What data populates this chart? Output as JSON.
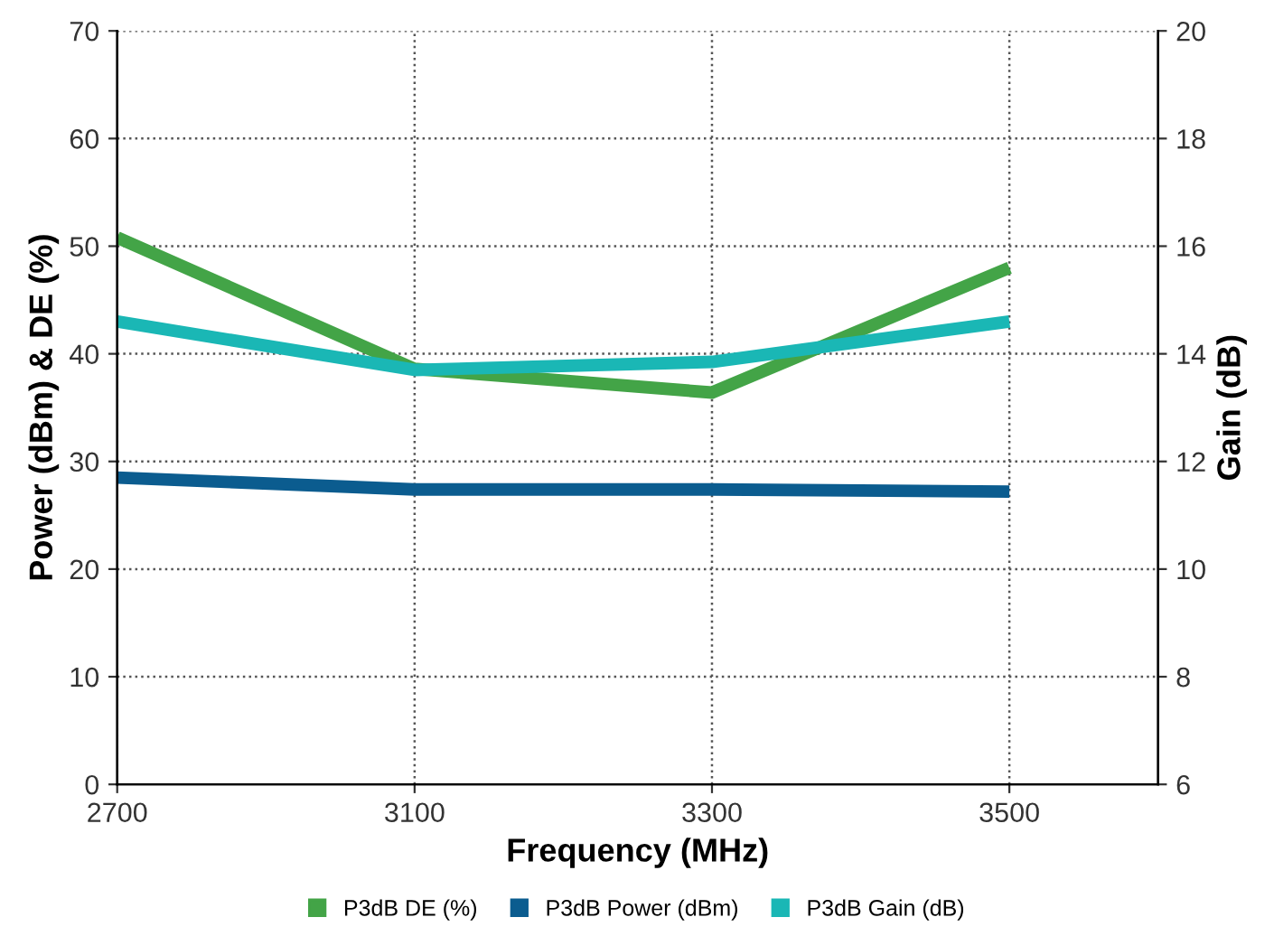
{
  "chart_data": {
    "type": "line",
    "xlabel": "Frequency (MHz)",
    "ylabel": "Power (dBm) & DE (%)",
    "y2label": "Gain (dB)",
    "categories": [
      "2700",
      "3100",
      "3300",
      "3500"
    ],
    "series": [
      {
        "name": "P3dB DE (%)",
        "color": "#43a447",
        "values": [
          50.8,
          38.6,
          36.4,
          48
        ]
      },
      {
        "name": "P3dB Power (dBm)",
        "color": "#0b5c8f",
        "values": [
          28.5,
          27.4,
          27.4,
          27.2
        ]
      },
      {
        "name": "P3dB Gain (dB)",
        "color": "#1ab7b5",
        "values": [
          14.6,
          13.7,
          13.85,
          14.6
        ],
        "axis": "y2"
      }
    ],
    "ylim": [
      0,
      70
    ],
    "yticks": [
      0,
      10,
      20,
      30,
      40,
      50,
      60,
      70
    ],
    "y2lim": [
      6,
      20
    ],
    "y2ticks": [
      6,
      8,
      10,
      12,
      14,
      16,
      18,
      20
    ],
    "grid": true,
    "legend": "bottom",
    "marker": "none",
    "line_style": "solid"
  }
}
